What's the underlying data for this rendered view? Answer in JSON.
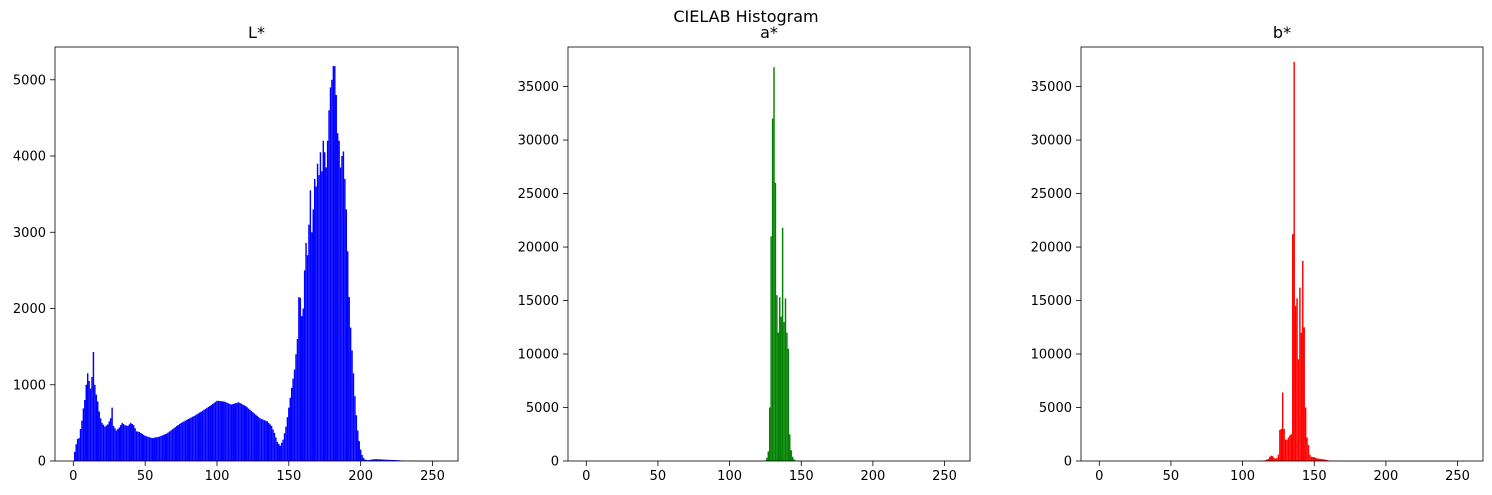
{
  "figure": {
    "suptitle": "CIELAB Histogram"
  },
  "chart_data": [
    {
      "type": "bar",
      "title": "L*",
      "xlabel": "",
      "ylabel": "",
      "color": "#0000ff",
      "xlim": [
        -12.75,
        267.75
      ],
      "ylim": [
        0,
        5430
      ],
      "xticks": [
        0,
        50,
        100,
        150,
        200,
        250
      ],
      "yticks": [
        0,
        1000,
        2000,
        3000,
        4000,
        5000
      ],
      "grid": false,
      "profile": [
        [
          0,
          0
        ],
        [
          1,
          120
        ],
        [
          2,
          220
        ],
        [
          3,
          290
        ],
        [
          4,
          300
        ],
        [
          5,
          420
        ],
        [
          6,
          530
        ],
        [
          7,
          690
        ],
        [
          8,
          800
        ],
        [
          9,
          1000
        ],
        [
          10,
          1150
        ],
        [
          11,
          1050
        ],
        [
          12,
          950
        ],
        [
          13,
          1100
        ],
        [
          14,
          1430
        ],
        [
          15,
          1000
        ],
        [
          16,
          870
        ],
        [
          17,
          780
        ],
        [
          18,
          650
        ],
        [
          19,
          560
        ],
        [
          20,
          500
        ],
        [
          22,
          450
        ],
        [
          24,
          480
        ],
        [
          26,
          560
        ],
        [
          27,
          700
        ],
        [
          28,
          460
        ],
        [
          30,
          400
        ],
        [
          32,
          440
        ],
        [
          34,
          500
        ],
        [
          36,
          470
        ],
        [
          38,
          460
        ],
        [
          40,
          500
        ],
        [
          42,
          470
        ],
        [
          44,
          390
        ],
        [
          46,
          380
        ],
        [
          50,
          330
        ],
        [
          55,
          300
        ],
        [
          60,
          320
        ],
        [
          65,
          360
        ],
        [
          70,
          430
        ],
        [
          75,
          500
        ],
        [
          80,
          550
        ],
        [
          85,
          600
        ],
        [
          90,
          660
        ],
        [
          95,
          720
        ],
        [
          100,
          790
        ],
        [
          105,
          780
        ],
        [
          110,
          740
        ],
        [
          115,
          770
        ],
        [
          120,
          720
        ],
        [
          125,
          640
        ],
        [
          130,
          560
        ],
        [
          135,
          520
        ],
        [
          138,
          460
        ],
        [
          140,
          370
        ],
        [
          142,
          250
        ],
        [
          144,
          200
        ],
        [
          146,
          280
        ],
        [
          148,
          450
        ],
        [
          150,
          700
        ],
        [
          152,
          960
        ],
        [
          154,
          1200
        ],
        [
          156,
          1600
        ],
        [
          157,
          2150
        ],
        [
          158,
          2140
        ],
        [
          159,
          1900
        ],
        [
          160,
          2000
        ],
        [
          161,
          2500
        ],
        [
          162,
          2860
        ],
        [
          163,
          2700
        ],
        [
          164,
          3100
        ],
        [
          165,
          3550
        ],
        [
          166,
          3000
        ],
        [
          167,
          3300
        ],
        [
          168,
          3700
        ],
        [
          169,
          3600
        ],
        [
          170,
          3900
        ],
        [
          171,
          3750
        ],
        [
          172,
          4050
        ],
        [
          173,
          3800
        ],
        [
          174,
          4200
        ],
        [
          175,
          4050
        ],
        [
          176,
          3850
        ],
        [
          177,
          4200
        ],
        [
          178,
          4600
        ],
        [
          179,
          4900
        ],
        [
          180,
          5000
        ],
        [
          181,
          5180
        ],
        [
          182,
          5180
        ],
        [
          183,
          4800
        ],
        [
          184,
          4300
        ],
        [
          185,
          4200
        ],
        [
          186,
          3850
        ],
        [
          187,
          4000
        ],
        [
          188,
          4060
        ],
        [
          189,
          3700
        ],
        [
          190,
          3300
        ],
        [
          191,
          2750
        ],
        [
          192,
          2150
        ],
        [
          193,
          1750
        ],
        [
          194,
          1450
        ],
        [
          195,
          1150
        ],
        [
          196,
          850
        ],
        [
          197,
          600
        ],
        [
          198,
          400
        ],
        [
          199,
          260
        ],
        [
          200,
          150
        ],
        [
          201,
          80
        ],
        [
          202,
          40
        ],
        [
          203,
          20
        ],
        [
          205,
          10
        ],
        [
          210,
          25
        ],
        [
          215,
          20
        ],
        [
          220,
          15
        ],
        [
          225,
          12
        ],
        [
          230,
          5
        ],
        [
          240,
          2
        ],
        [
          255,
          0
        ]
      ]
    },
    {
      "type": "bar",
      "title": "a*",
      "xlabel": "",
      "ylabel": "",
      "color": "#008000",
      "xlim": [
        -12.75,
        267.75
      ],
      "ylim": [
        0,
        38700
      ],
      "xticks": [
        0,
        50,
        100,
        150,
        200,
        250
      ],
      "yticks": [
        0,
        5000,
        10000,
        15000,
        20000,
        25000,
        30000,
        35000
      ],
      "grid": false,
      "profile": [
        [
          0,
          0
        ],
        [
          100,
          0
        ],
        [
          120,
          5
        ],
        [
          125,
          60
        ],
        [
          126,
          300
        ],
        [
          127,
          900
        ],
        [
          128,
          5000
        ],
        [
          129,
          21000
        ],
        [
          130,
          32000
        ],
        [
          131,
          36800
        ],
        [
          132,
          26000
        ],
        [
          133,
          15500
        ],
        [
          134,
          12000
        ],
        [
          135,
          15300
        ],
        [
          136,
          13500
        ],
        [
          137,
          21800
        ],
        [
          138,
          13000
        ],
        [
          139,
          15200
        ],
        [
          140,
          12000
        ],
        [
          141,
          10500
        ],
        [
          142,
          2500
        ],
        [
          143,
          1000
        ],
        [
          144,
          400
        ],
        [
          145,
          150
        ],
        [
          146,
          60
        ],
        [
          148,
          15
        ],
        [
          150,
          5
        ],
        [
          160,
          0
        ],
        [
          255,
          0
        ]
      ]
    },
    {
      "type": "bar",
      "title": "b*",
      "xlabel": "",
      "ylabel": "",
      "color": "#ff0000",
      "xlim": [
        -12.75,
        267.75
      ],
      "ylim": [
        0,
        38700
      ],
      "xticks": [
        0,
        50,
        100,
        150,
        200,
        250
      ],
      "yticks": [
        0,
        5000,
        10000,
        15000,
        20000,
        25000,
        30000,
        35000
      ],
      "grid": false,
      "profile": [
        [
          0,
          0
        ],
        [
          110,
          0
        ],
        [
          115,
          20
        ],
        [
          118,
          200
        ],
        [
          119,
          400
        ],
        [
          120,
          500
        ],
        [
          121,
          450
        ],
        [
          122,
          300
        ],
        [
          123,
          200
        ],
        [
          124,
          300
        ],
        [
          125,
          600
        ],
        [
          126,
          2900
        ],
        [
          127,
          3000
        ],
        [
          128,
          6400
        ],
        [
          129,
          3000
        ],
        [
          130,
          2000
        ],
        [
          131,
          2000
        ],
        [
          132,
          2200
        ],
        [
          133,
          2400
        ],
        [
          134,
          2500
        ],
        [
          135,
          21200
        ],
        [
          136,
          37300
        ],
        [
          137,
          14500
        ],
        [
          138,
          15200
        ],
        [
          139,
          9500
        ],
        [
          140,
          16200
        ],
        [
          141,
          12000
        ],
        [
          142,
          18700
        ],
        [
          143,
          12500
        ],
        [
          144,
          5000
        ],
        [
          145,
          2200
        ],
        [
          146,
          1500
        ],
        [
          147,
          600
        ],
        [
          148,
          400
        ],
        [
          150,
          350
        ],
        [
          152,
          250
        ],
        [
          155,
          180
        ],
        [
          158,
          120
        ],
        [
          160,
          60
        ],
        [
          163,
          30
        ],
        [
          165,
          20
        ],
        [
          170,
          10
        ],
        [
          180,
          5
        ],
        [
          200,
          3
        ],
        [
          220,
          1
        ],
        [
          255,
          0
        ]
      ]
    }
  ]
}
